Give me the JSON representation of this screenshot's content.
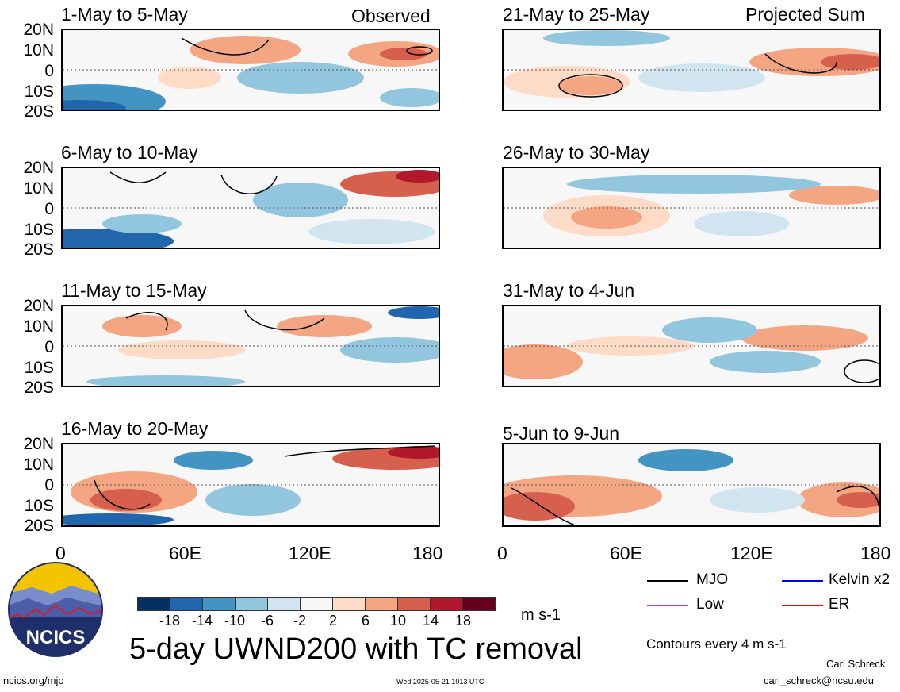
{
  "header": {
    "left_label": "Observed",
    "right_label": "Projected Sum"
  },
  "panels_left": [
    {
      "title": "1-May to 5-May"
    },
    {
      "title": "6-May to 10-May"
    },
    {
      "title": "11-May to 15-May"
    },
    {
      "title": "16-May to 20-May"
    }
  ],
  "panels_right": [
    {
      "title": "21-May to 25-May"
    },
    {
      "title": "26-May to 30-May"
    },
    {
      "title": "31-May to 4-Jun"
    },
    {
      "title": "5-Jun to 9-Jun"
    }
  ],
  "axes": {
    "lat_labels": [
      "20N",
      "10N",
      "0",
      "10S",
      "20S"
    ],
    "lon_labels": [
      "0",
      "60E",
      "120E",
      "180"
    ]
  },
  "colorbar": {
    "ticks": [
      "-18",
      "-14",
      "-10",
      "-6",
      "-2",
      "2",
      "6",
      "10",
      "14",
      "18"
    ],
    "colors": [
      "#053061",
      "#2166ac",
      "#4393c3",
      "#92c5de",
      "#d1e5f0",
      "#f7f7f7",
      "#fddbc7",
      "#f4a582",
      "#d6604d",
      "#b2182b",
      "#67001f"
    ],
    "units": "m s-1"
  },
  "title": "5-day UWND200 with TC removal",
  "legend": {
    "items": [
      {
        "label": "MJO",
        "color": "#000000"
      },
      {
        "label": "Kelvin x2",
        "color": "#0000ff"
      },
      {
        "label": "Low",
        "color": "#a040ff"
      },
      {
        "label": "ER",
        "color": "#ff0000"
      }
    ],
    "contour_note": "Contours every 4 m s-1"
  },
  "footer": {
    "logo_text": "NCICS",
    "url": "ncics.org/mjo",
    "timestamp": "Wed 2025-05-21 1013 UTC",
    "author": "Carl Schreck",
    "email": "carl_schreck@ncsu.edu"
  }
}
